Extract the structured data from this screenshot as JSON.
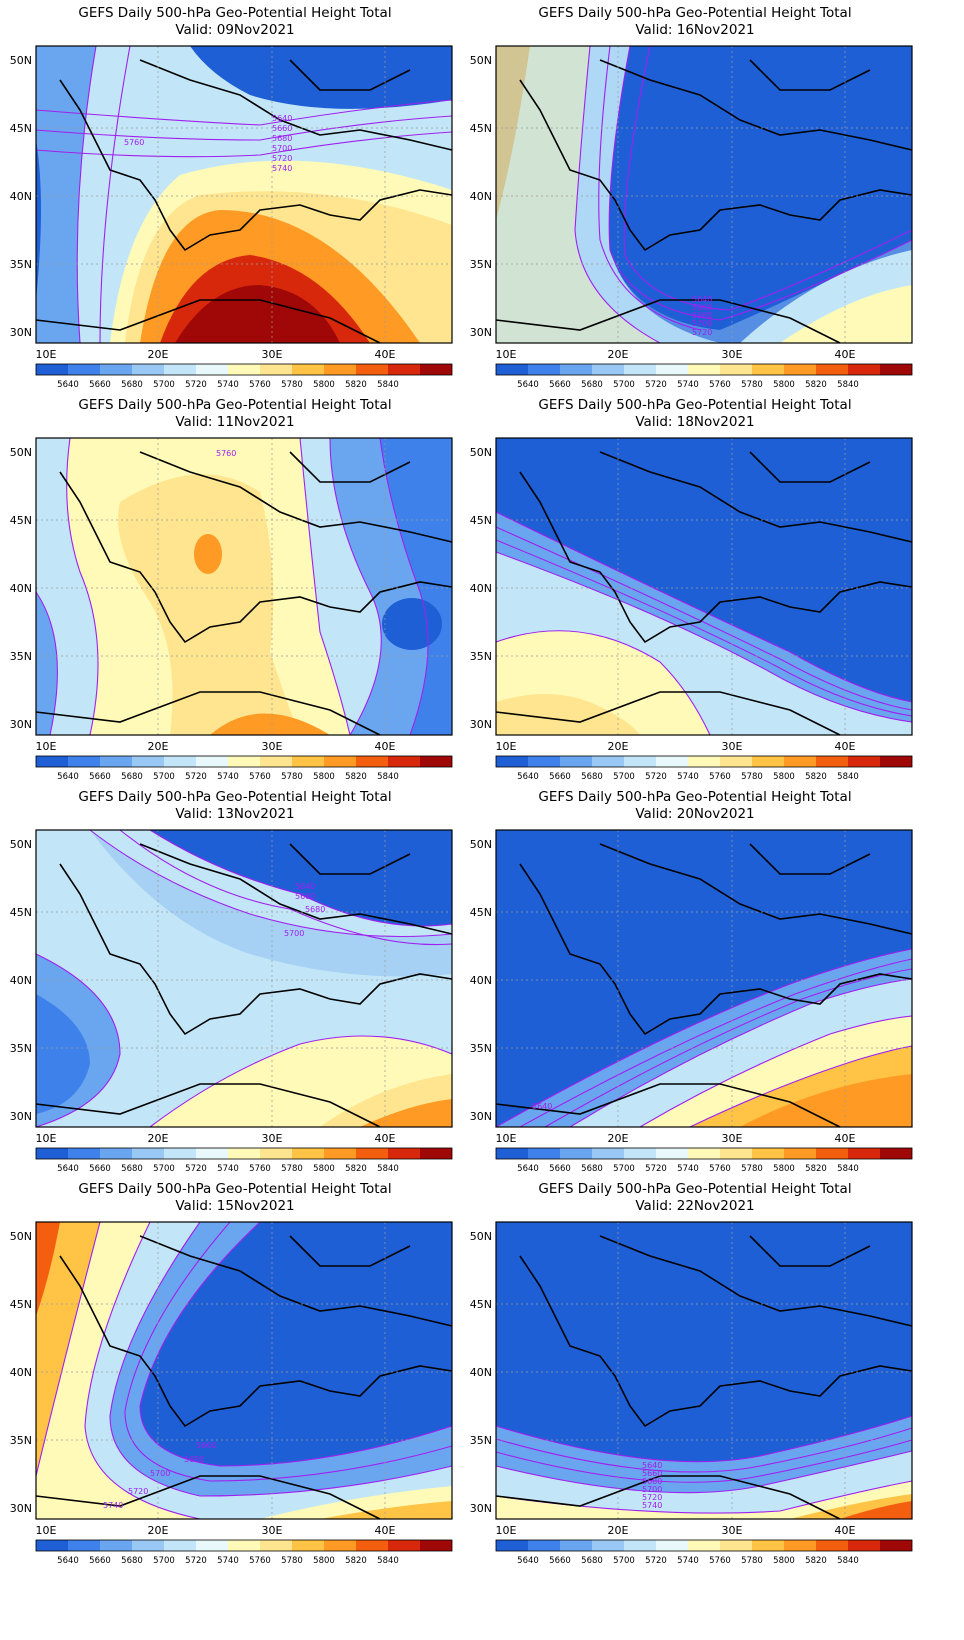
{
  "figure": {
    "title": "GEFS Daily 500-hPa Geo-Potential Height Total",
    "valid_prefix": "Valid: ",
    "panels": [
      {
        "valid": "09Nov2021",
        "labels": [
          "5760",
          "5640",
          "5660",
          "5680",
          "5700",
          "5720",
          "5740"
        ]
      },
      {
        "valid": "16Nov2021",
        "labels": [
          "5640",
          "5660",
          "5680",
          "5700",
          "5720"
        ]
      },
      {
        "valid": "11Nov2021",
        "labels": [
          "5760"
        ]
      },
      {
        "valid": "18Nov2021",
        "labels": []
      },
      {
        "valid": "13Nov2021",
        "labels": [
          "5640",
          "5660",
          "5680",
          "5700"
        ]
      },
      {
        "valid": "20Nov2021",
        "labels": [
          "5640"
        ]
      },
      {
        "valid": "15Nov2021",
        "labels": [
          "5660",
          "5680",
          "5700",
          "5720",
          "5740"
        ]
      },
      {
        "valid": "22Nov2021",
        "labels": [
          "5640",
          "5660",
          "5680",
          "5700",
          "5720",
          "5740"
        ]
      }
    ],
    "x_ticks": [
      "10E",
      "20E",
      "30E",
      "40E"
    ],
    "y_ticks": [
      "50N",
      "45N",
      "40N",
      "35N",
      "30N"
    ],
    "colorbar_labels": [
      "5640",
      "5660",
      "5680",
      "5700",
      "5720",
      "5740",
      "5760",
      "5780",
      "5800",
      "5820",
      "5840"
    ],
    "colorbar_colors": [
      "#1f5fd6",
      "#3f81ea",
      "#6aa6ef",
      "#9ac8f4",
      "#c2e6f8",
      "#e9f8fa",
      "#fffab8",
      "#ffe58f",
      "#ffc346",
      "#ff9a24",
      "#f35e0f",
      "#d8280b",
      "#a00808"
    ],
    "contour_color": "#a020f0"
  }
}
